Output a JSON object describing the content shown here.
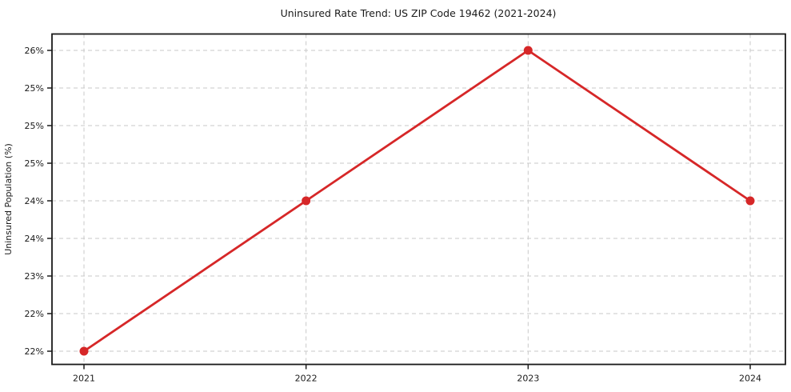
{
  "figure": {
    "background": "#ffffff"
  },
  "chart_data": {
    "type": "line",
    "title": "Uninsured Rate Trend: US ZIP Code 19462 (2021-2024)",
    "xlabel": "",
    "ylabel": "Uninsured Population (%)",
    "categories": [
      "2021",
      "2022",
      "2023",
      "2024"
    ],
    "series": [
      {
        "name": "Uninsured Population (%)",
        "values": [
          22.0,
          24.0,
          26.0,
          24.0
        ]
      }
    ],
    "ylim": [
      22.0,
      26.0
    ],
    "y_ticks": [
      22.0,
      22.5,
      23.0,
      23.5,
      24.0,
      24.5,
      25.0,
      25.5,
      26.0
    ],
    "y_tick_labels": [
      "22%",
      "22%",
      "23%",
      "24%",
      "24%",
      "25%",
      "25%",
      "25%",
      "26%"
    ],
    "grid": true,
    "grid_style": "dashed",
    "legend_position": "none",
    "line_color": "#d62728",
    "marker": "circle",
    "grid_color": "#c9c9c9",
    "axis_color": "#1a1a1a",
    "text_color": "#1a1a1a"
  }
}
